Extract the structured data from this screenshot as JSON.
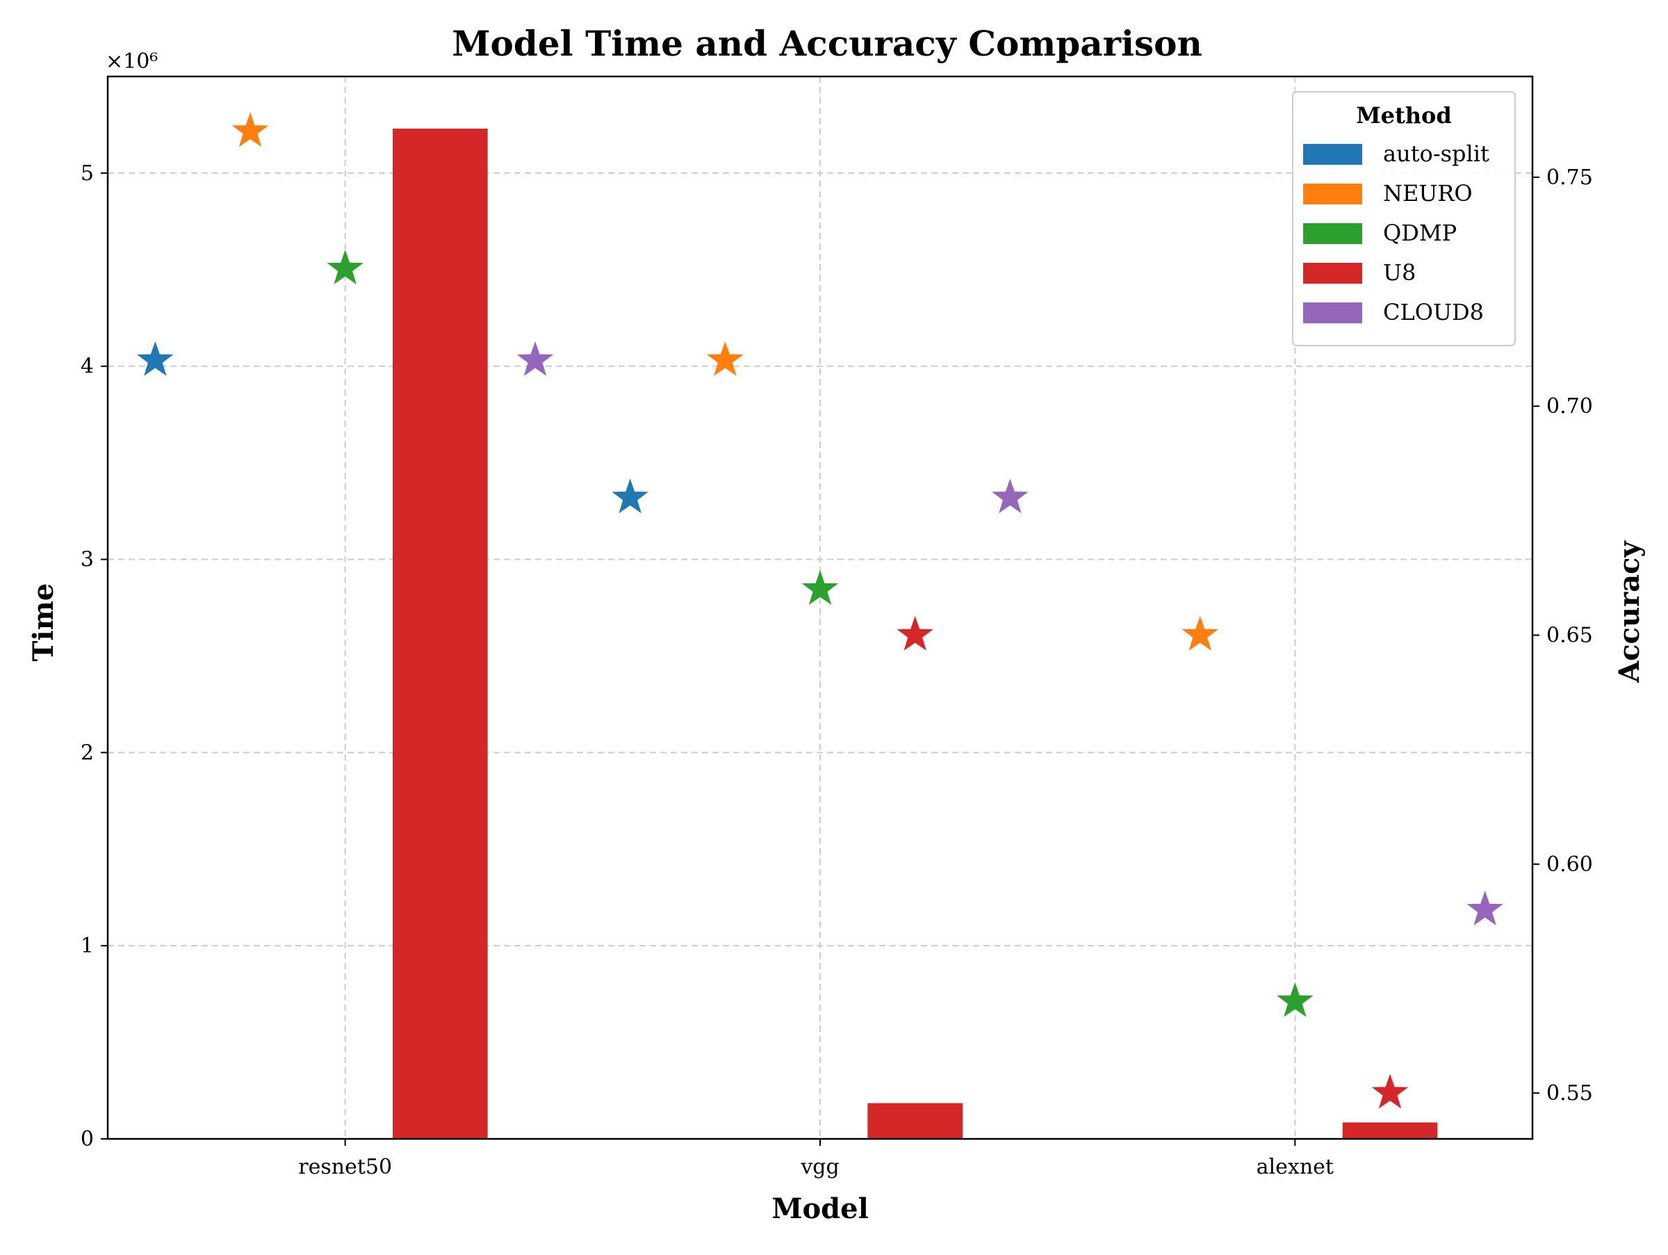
{
  "chart_data": {
    "type": "bar",
    "title": "Model Time and Accuracy Comparison",
    "xlabel": "Model",
    "ylabel": "Time",
    "y2label": "Accuracy",
    "categories": [
      "resnet50",
      "vgg",
      "alexnet"
    ],
    "ylim": [
      0,
      5500000
    ],
    "y_ticks": [
      0,
      1,
      2,
      3,
      4,
      5
    ],
    "y_offset_label": "×10⁶",
    "y2lim": [
      0.54,
      0.772
    ],
    "y2_ticks": [
      "0.55",
      "0.60",
      "0.65",
      "0.70",
      "0.75"
    ],
    "grid": true,
    "legend": {
      "title": "Method",
      "placement": "top-right"
    },
    "series": [
      {
        "name": "auto-split",
        "color": "#1f77b4",
        "time": [
          0,
          0,
          0
        ],
        "accuracy": [
          0.71,
          0.68,
          null
        ]
      },
      {
        "name": "NEURO",
        "color": "#ff7f0e",
        "time": [
          0,
          0,
          0
        ],
        "accuracy": [
          0.76,
          0.71,
          0.65
        ]
      },
      {
        "name": "QDMP",
        "color": "#2ca02c",
        "time": [
          0,
          0,
          0
        ],
        "accuracy": [
          0.73,
          0.66,
          0.57
        ]
      },
      {
        "name": "U8",
        "color": "#d62728",
        "time": [
          5230000,
          185000,
          85000
        ],
        "accuracy": [
          null,
          0.65,
          0.55
        ]
      },
      {
        "name": "CLOUD8",
        "color": "#9467bd",
        "time": [
          0,
          0,
          0
        ],
        "accuracy": [
          0.71,
          0.68,
          0.59
        ]
      }
    ]
  }
}
